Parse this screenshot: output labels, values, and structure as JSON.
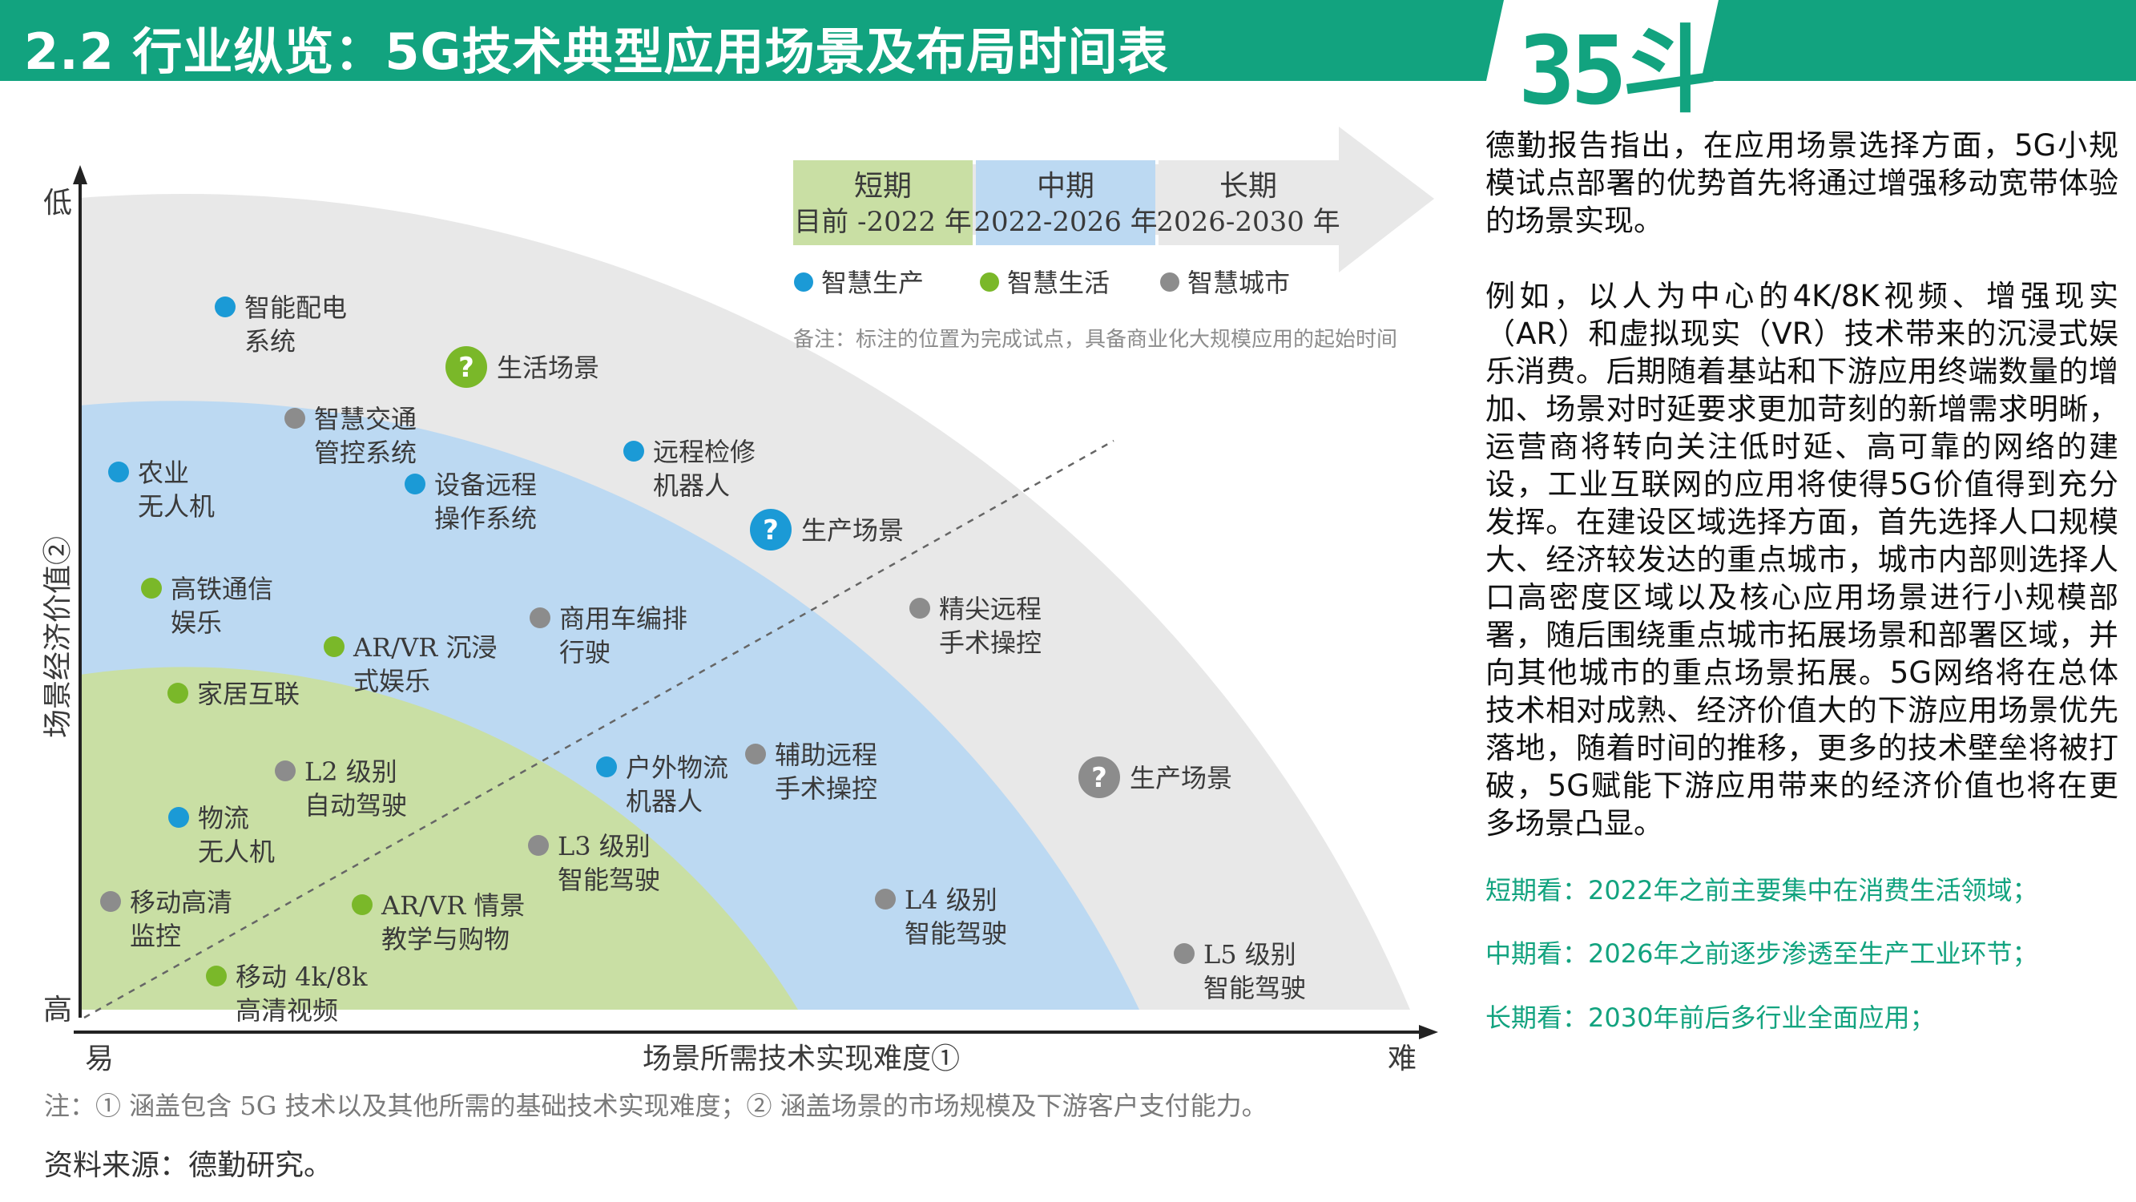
{
  "header": {
    "title": "2.2 行业纵览：5G技术典型应用场景及布局时间表",
    "logo": "35斗"
  },
  "chart": {
    "y_axis_label": "场景经济价值②",
    "y_top": "低",
    "y_bottom": "高",
    "x_axis_label": "场景所需技术实现难度①",
    "x_left": "易",
    "x_right": "难",
    "timeline": [
      {
        "name": "短期",
        "range": "目前 -2022 年",
        "color": "#c9dfa4"
      },
      {
        "name": "中期",
        "range": "2022-2026 年",
        "color": "#bcd9f2"
      },
      {
        "name": "长期",
        "range": "2026-2030 年",
        "color": "#e6e6e6"
      }
    ],
    "legend": [
      {
        "label": "智慧生产",
        "color": "#1b9ad6"
      },
      {
        "label": "智慧生活",
        "color": "#7ab829"
      },
      {
        "label": "智慧城市",
        "color": "#8c8c8c"
      }
    ],
    "remark": "备注：标注的位置为完成试点，具备商业化大规模应用的起始时间",
    "scenes": [
      {
        "line1": "生活场景",
        "color": "#7ab829"
      },
      {
        "line1": "生产场景",
        "color": "#1b9ad6"
      },
      {
        "line1": "生产场景",
        "color": "#8c8c8c"
      }
    ],
    "points": [
      {
        "line1": "智能配电",
        "line2": "系统",
        "color": "#1b9ad6"
      },
      {
        "line1": "智慧交通",
        "line2": "管控系统",
        "color": "#8c8c8c"
      },
      {
        "line1": "农业",
        "line2": "无人机",
        "color": "#1b9ad6"
      },
      {
        "line1": "设备远程",
        "line2": "操作系统",
        "color": "#1b9ad6"
      },
      {
        "line1": "远程检修",
        "line2": "机器人",
        "color": "#1b9ad6"
      },
      {
        "line1": "高铁通信",
        "line2": "娱乐",
        "color": "#7ab829"
      },
      {
        "line1": "商用车编排",
        "line2": "行驶",
        "color": "#8c8c8c"
      },
      {
        "line1": "精尖远程",
        "line2": "手术操控",
        "color": "#8c8c8c"
      },
      {
        "line1": "AR/VR 沉浸",
        "line2": "式娱乐",
        "color": "#7ab829"
      },
      {
        "line1": "家居互联",
        "line2": "",
        "color": "#7ab829"
      },
      {
        "line1": "L2 级别",
        "line2": "自动驾驶",
        "color": "#8c8c8c"
      },
      {
        "line1": "户外物流",
        "line2": "机器人",
        "color": "#1b9ad6"
      },
      {
        "line1": "辅助远程",
        "line2": "手术操控",
        "color": "#8c8c8c"
      },
      {
        "line1": "物流",
        "line2": "无人机",
        "color": "#1b9ad6"
      },
      {
        "line1": "L3 级别",
        "line2": "智能驾驶",
        "color": "#8c8c8c"
      },
      {
        "line1": "移动高清",
        "line2": "监控",
        "color": "#8c8c8c"
      },
      {
        "line1": "AR/VR 情景",
        "line2": "教学与购物",
        "color": "#7ab829"
      },
      {
        "line1": "L4 级别",
        "line2": "智能驾驶",
        "color": "#8c8c8c"
      },
      {
        "line1": "移动 4k/8k",
        "line2": "高清视频",
        "color": "#7ab829"
      },
      {
        "line1": "L5 级别",
        "line2": "智能驾驶",
        "color": "#8c8c8c"
      }
    ]
  },
  "footnote": "注：① 涵盖包含 5G 技术以及其他所需的基础技术实现难度；② 涵盖场景的市场规模及下游客户支付能力。",
  "source": "资料来源：德勤研究。",
  "right": {
    "para1": "德勤报告指出，在应用场景选择方面，5G小规模试点部署的优势首先将通过增强移动宽带体验的场景实现。",
    "para2": "例如，以人为中心的4K/8K视频、增强现实（AR）和虚拟现实（VR）技术带来的沉浸式娱乐消费。后期随着基站和下游应用终端数量的增加、场景对时延要求更加苛刻的新增需求明晰，运营商将转向关注低时延、高可靠的网络的建设，工业互联网的应用将使得5G价值得到充分发挥。在建设区域选择方面，首先选择人口规模大、经济较发达的重点城市，城市内部则选择人口高密度区域以及核心应用场景进行小规模部署，随后围绕重点城市拓展场景和部署区域，并向其他城市的重点场景拓展。5G网络将在总体技术相对成熟、经济价值大的下游应用场景优先落地，随着时间的推移，更多的技术壁垒将被打破，5G赋能下游应用带来的经济价值也将在更多场景凸显。",
    "short": "短期看：2022年之前主要集中在消费生活领域；",
    "mid": "中期看：2026年之前逐步渗透至生产工业环节；",
    "long": "长期看：2030年前后多行业全面应用；"
  }
}
